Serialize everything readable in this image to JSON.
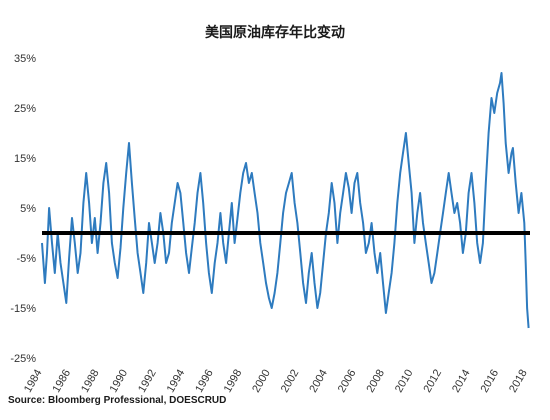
{
  "chart_data": {
    "type": "line",
    "title": "美国原油库存年比变动",
    "source": "Source: Bloomberg Professional, DOESCRUD",
    "xlim": [
      1984,
      2018.2
    ],
    "ylim": [
      -25,
      35
    ],
    "yticks": [
      "35%",
      "25%",
      "15%",
      "5%",
      "-5%",
      "-15%",
      "-25%"
    ],
    "ytick_values": [
      35,
      25,
      15,
      5,
      -5,
      -15,
      -25
    ],
    "xticks": [
      "1984",
      "1986",
      "1988",
      "1990",
      "1992",
      "1994",
      "1996",
      "1998",
      "2000",
      "2002",
      "2004",
      "2006",
      "2008",
      "2010",
      "2012",
      "2014",
      "2016",
      "2018"
    ],
    "xtick_values": [
      1984,
      1986,
      1988,
      1990,
      1992,
      1994,
      1996,
      1998,
      2000,
      2002,
      2004,
      2006,
      2008,
      2010,
      2012,
      2014,
      2016,
      2018
    ],
    "grid": false,
    "reference_line": 0,
    "series": [
      {
        "color": "#2e7bbf",
        "points": [
          [
            1984.0,
            -2
          ],
          [
            1984.2,
            -10
          ],
          [
            1984.35,
            -4
          ],
          [
            1984.5,
            5
          ],
          [
            1984.7,
            -2
          ],
          [
            1984.9,
            -8
          ],
          [
            1985.1,
            0
          ],
          [
            1985.3,
            -6
          ],
          [
            1985.5,
            -10
          ],
          [
            1985.7,
            -14
          ],
          [
            1985.9,
            -5
          ],
          [
            1986.1,
            3
          ],
          [
            1986.3,
            -2
          ],
          [
            1986.5,
            -8
          ],
          [
            1986.7,
            -4
          ],
          [
            1986.9,
            6
          ],
          [
            1987.1,
            12
          ],
          [
            1987.3,
            6
          ],
          [
            1987.5,
            -2
          ],
          [
            1987.7,
            3
          ],
          [
            1987.9,
            -4
          ],
          [
            1988.1,
            2
          ],
          [
            1988.3,
            10
          ],
          [
            1988.5,
            14
          ],
          [
            1988.7,
            8
          ],
          [
            1988.9,
            -2
          ],
          [
            1989.1,
            -6
          ],
          [
            1989.3,
            -9
          ],
          [
            1989.5,
            -3
          ],
          [
            1989.7,
            5
          ],
          [
            1989.9,
            12
          ],
          [
            1990.1,
            18
          ],
          [
            1990.3,
            10
          ],
          [
            1990.5,
            3
          ],
          [
            1990.7,
            -4
          ],
          [
            1990.9,
            -8
          ],
          [
            1991.1,
            -12
          ],
          [
            1991.3,
            -6
          ],
          [
            1991.5,
            2
          ],
          [
            1991.7,
            -2
          ],
          [
            1991.9,
            -6
          ],
          [
            1992.1,
            -2
          ],
          [
            1992.3,
            4
          ],
          [
            1992.5,
            0
          ],
          [
            1992.7,
            -6
          ],
          [
            1992.9,
            -4
          ],
          [
            1993.1,
            2
          ],
          [
            1993.3,
            6
          ],
          [
            1993.5,
            10
          ],
          [
            1993.7,
            8
          ],
          [
            1993.9,
            2
          ],
          [
            1994.1,
            -4
          ],
          [
            1994.3,
            -8
          ],
          [
            1994.5,
            -3
          ],
          [
            1994.7,
            2
          ],
          [
            1994.9,
            8
          ],
          [
            1995.1,
            12
          ],
          [
            1995.3,
            6
          ],
          [
            1995.5,
            -2
          ],
          [
            1995.7,
            -8
          ],
          [
            1995.9,
            -12
          ],
          [
            1996.1,
            -6
          ],
          [
            1996.3,
            -2
          ],
          [
            1996.5,
            4
          ],
          [
            1996.7,
            -2
          ],
          [
            1996.9,
            -6
          ],
          [
            1997.1,
            0
          ],
          [
            1997.3,
            6
          ],
          [
            1997.5,
            -2
          ],
          [
            1997.7,
            3
          ],
          [
            1997.9,
            8
          ],
          [
            1998.1,
            12
          ],
          [
            1998.3,
            14
          ],
          [
            1998.5,
            10
          ],
          [
            1998.7,
            12
          ],
          [
            1998.9,
            8
          ],
          [
            1999.1,
            4
          ],
          [
            1999.3,
            -2
          ],
          [
            1999.5,
            -6
          ],
          [
            1999.7,
            -10
          ],
          [
            1999.9,
            -13
          ],
          [
            2000.1,
            -15
          ],
          [
            2000.3,
            -12
          ],
          [
            2000.5,
            -8
          ],
          [
            2000.7,
            -2
          ],
          [
            2000.9,
            4
          ],
          [
            2001.1,
            8
          ],
          [
            2001.3,
            10
          ],
          [
            2001.5,
            12
          ],
          [
            2001.7,
            6
          ],
          [
            2001.9,
            2
          ],
          [
            2002.1,
            -4
          ],
          [
            2002.3,
            -10
          ],
          [
            2002.5,
            -14
          ],
          [
            2002.7,
            -8
          ],
          [
            2002.9,
            -4
          ],
          [
            2003.1,
            -10
          ],
          [
            2003.3,
            -15
          ],
          [
            2003.5,
            -12
          ],
          [
            2003.7,
            -6
          ],
          [
            2003.9,
            0
          ],
          [
            2004.1,
            4
          ],
          [
            2004.3,
            10
          ],
          [
            2004.5,
            6
          ],
          [
            2004.7,
            -2
          ],
          [
            2004.9,
            4
          ],
          [
            2005.1,
            8
          ],
          [
            2005.3,
            12
          ],
          [
            2005.5,
            9
          ],
          [
            2005.7,
            4
          ],
          [
            2005.9,
            10
          ],
          [
            2006.1,
            12
          ],
          [
            2006.3,
            6
          ],
          [
            2006.5,
            2
          ],
          [
            2006.7,
            -4
          ],
          [
            2006.9,
            -2
          ],
          [
            2007.1,
            2
          ],
          [
            2007.3,
            -4
          ],
          [
            2007.5,
            -8
          ],
          [
            2007.7,
            -4
          ],
          [
            2007.9,
            -10
          ],
          [
            2008.1,
            -16
          ],
          [
            2008.3,
            -12
          ],
          [
            2008.5,
            -8
          ],
          [
            2008.7,
            -2
          ],
          [
            2008.9,
            6
          ],
          [
            2009.1,
            12
          ],
          [
            2009.3,
            16
          ],
          [
            2009.5,
            20
          ],
          [
            2009.7,
            14
          ],
          [
            2009.9,
            8
          ],
          [
            2010.1,
            -2
          ],
          [
            2010.3,
            4
          ],
          [
            2010.5,
            8
          ],
          [
            2010.7,
            2
          ],
          [
            2010.9,
            -2
          ],
          [
            2011.1,
            -6
          ],
          [
            2011.3,
            -10
          ],
          [
            2011.5,
            -8
          ],
          [
            2011.7,
            -4
          ],
          [
            2011.9,
            0
          ],
          [
            2012.1,
            4
          ],
          [
            2012.3,
            8
          ],
          [
            2012.5,
            12
          ],
          [
            2012.7,
            8
          ],
          [
            2012.9,
            4
          ],
          [
            2013.1,
            6
          ],
          [
            2013.3,
            2
          ],
          [
            2013.5,
            -4
          ],
          [
            2013.7,
            0
          ],
          [
            2013.9,
            8
          ],
          [
            2014.1,
            12
          ],
          [
            2014.3,
            6
          ],
          [
            2014.5,
            -2
          ],
          [
            2014.7,
            -6
          ],
          [
            2014.9,
            -2
          ],
          [
            2015.1,
            10
          ],
          [
            2015.3,
            20
          ],
          [
            2015.5,
            27
          ],
          [
            2015.7,
            24
          ],
          [
            2015.9,
            28
          ],
          [
            2016.1,
            30
          ],
          [
            2016.2,
            32
          ],
          [
            2016.35,
            26
          ],
          [
            2016.5,
            18
          ],
          [
            2016.7,
            12
          ],
          [
            2016.9,
            16
          ],
          [
            2017.0,
            17
          ],
          [
            2017.2,
            10
          ],
          [
            2017.4,
            4
          ],
          [
            2017.6,
            8
          ],
          [
            2017.8,
            2
          ],
          [
            2017.9,
            -6
          ],
          [
            2018.0,
            -15
          ],
          [
            2018.1,
            -19
          ]
        ]
      }
    ]
  }
}
